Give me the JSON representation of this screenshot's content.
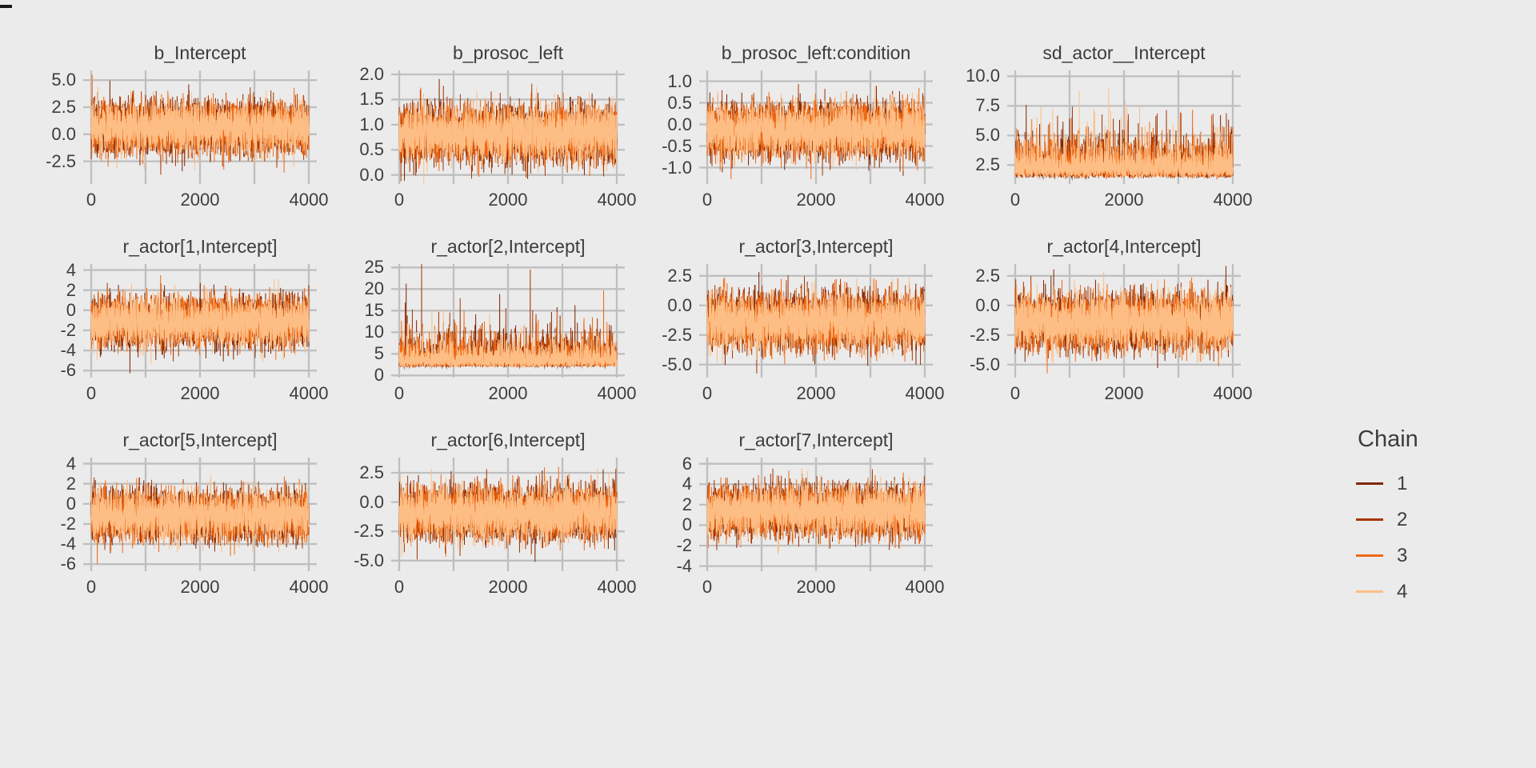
{
  "page": {
    "background": "#EBEBEB"
  },
  "chart_data": {
    "type": "line",
    "subtype": "mcmc-trace-grid",
    "description": "MCMC trace plots (4 chains) for posterior draws of model parameters",
    "grid": {
      "rows": 3,
      "cols": 4,
      "filled_cells": 11
    },
    "x": {
      "label": "",
      "range": [
        0,
        4000
      ],
      "ticks": [
        0,
        2000,
        4000
      ],
      "tick_labels": [
        "0",
        "2000",
        "4000"
      ],
      "gridlines": [
        0,
        1000,
        2000,
        3000,
        4000
      ]
    },
    "colors": {
      "background": "#EBEBEB",
      "gridline": "#BFBFBF",
      "text": "#3D3D3D"
    },
    "chains": {
      "count": 4,
      "draws_per_chain": 4000,
      "draw_order": "chain 1 first, chain 4 on top"
    },
    "legend": {
      "title": "Chain",
      "position": "right",
      "entries": [
        {
          "label": "1",
          "color": "#7F2704"
        },
        {
          "label": "2",
          "color": "#A63603"
        },
        {
          "label": "3",
          "color": "#F16913"
        },
        {
          "label": "4",
          "color": "#FDBE85"
        }
      ]
    },
    "facets": [
      {
        "title": "b_Intercept",
        "yticks": [
          5.0,
          2.5,
          0.0,
          -2.5
        ],
        "ytick_labels": [
          "5.0",
          "2.5",
          "0.0",
          "-2.5"
        ],
        "ylim": [
          -4.6,
          5.9
        ],
        "dist": {
          "kind": "normal",
          "mean": 0.6,
          "sd": 1.15
        }
      },
      {
        "title": "b_prosoc_left",
        "yticks": [
          2.0,
          1.5,
          1.0,
          0.5,
          0.0
        ],
        "ytick_labels": [
          "2.0",
          "1.5",
          "1.0",
          "0.5",
          "0.0"
        ],
        "ylim": [
          -0.18,
          2.08
        ],
        "dist": {
          "kind": "normal",
          "mean": 0.83,
          "sd": 0.27
        }
      },
      {
        "title": "b_prosoc_left:condition",
        "yticks": [
          1.0,
          0.5,
          0.0,
          -0.5,
          -1.0
        ],
        "ytick_labels": [
          "1.0",
          "0.5",
          "0.0",
          "-0.5",
          "-1.0"
        ],
        "ylim": [
          -1.38,
          1.25
        ],
        "dist": {
          "kind": "normal",
          "mean": -0.13,
          "sd": 0.3
        }
      },
      {
        "title": "sd_actor__Intercept",
        "yticks": [
          10.0,
          7.5,
          5.0,
          2.5
        ],
        "ytick_labels": [
          "10.0",
          "7.5",
          "5.0",
          "2.5"
        ],
        "ylim": [
          0.9,
          10.5
        ],
        "dist": {
          "kind": "lognormal",
          "offset": 1.2,
          "scale": 1.05,
          "sigma": 0.62
        }
      },
      {
        "title": "r_actor[1,Intercept]",
        "yticks": [
          4,
          2,
          0,
          -2,
          -4,
          -6
        ],
        "ytick_labels": [
          "4",
          "2",
          "0",
          "-2",
          "-4",
          "-6"
        ],
        "ylim": [
          -6.7,
          4.6
        ],
        "dist": {
          "kind": "normal",
          "mean": -1.15,
          "sd": 1.2
        }
      },
      {
        "title": "r_actor[2,Intercept]",
        "yticks": [
          25,
          20,
          15,
          10,
          5,
          0
        ],
        "ytick_labels": [
          "25",
          "20",
          "15",
          "10",
          "5",
          "0"
        ],
        "ylim": [
          -0.5,
          25.8
        ],
        "dist": {
          "kind": "lognormal",
          "offset": 1.6,
          "scale": 1.9,
          "sigma": 0.68
        }
      },
      {
        "title": "r_actor[3,Intercept]",
        "yticks": [
          2.5,
          0.0,
          -2.5,
          -5.0
        ],
        "ytick_labels": [
          "2.5",
          "0.0",
          "-2.5",
          "-5.0"
        ],
        "ylim": [
          -6.1,
          3.5
        ],
        "dist": {
          "kind": "normal",
          "mean": -1.35,
          "sd": 1.15
        }
      },
      {
        "title": "r_actor[4,Intercept]",
        "yticks": [
          2.5,
          0.0,
          -2.5,
          -5.0
        ],
        "ytick_labels": [
          "2.5",
          "0.0",
          "-2.5",
          "-5.0"
        ],
        "ylim": [
          -6.1,
          3.5
        ],
        "dist": {
          "kind": "normal",
          "mean": -1.35,
          "sd": 1.15
        }
      },
      {
        "title": "r_actor[5,Intercept]",
        "yticks": [
          4,
          2,
          0,
          -2,
          -4,
          -6
        ],
        "ytick_labels": [
          "4",
          "2",
          "0",
          "-2",
          "-4",
          "-6"
        ],
        "ylim": [
          -6.7,
          4.6
        ],
        "dist": {
          "kind": "normal",
          "mean": -1.15,
          "sd": 1.2
        }
      },
      {
        "title": "r_actor[6,Intercept]",
        "yticks": [
          2.5,
          0.0,
          -2.5,
          -5.0
        ],
        "ytick_labels": [
          "2.5",
          "0.0",
          "-2.5",
          "-5.0"
        ],
        "ylim": [
          -5.9,
          3.8
        ],
        "dist": {
          "kind": "normal",
          "mean": -0.95,
          "sd": 1.1
        }
      },
      {
        "title": "r_actor[7,Intercept]",
        "yticks": [
          6,
          4,
          2,
          0,
          -2,
          -4
        ],
        "ytick_labels": [
          "6",
          "4",
          "2",
          "0",
          "-2",
          "-4"
        ],
        "ylim": [
          -4.5,
          6.6
        ],
        "dist": {
          "kind": "normal",
          "mean": 1.35,
          "sd": 1.2
        }
      }
    ]
  }
}
